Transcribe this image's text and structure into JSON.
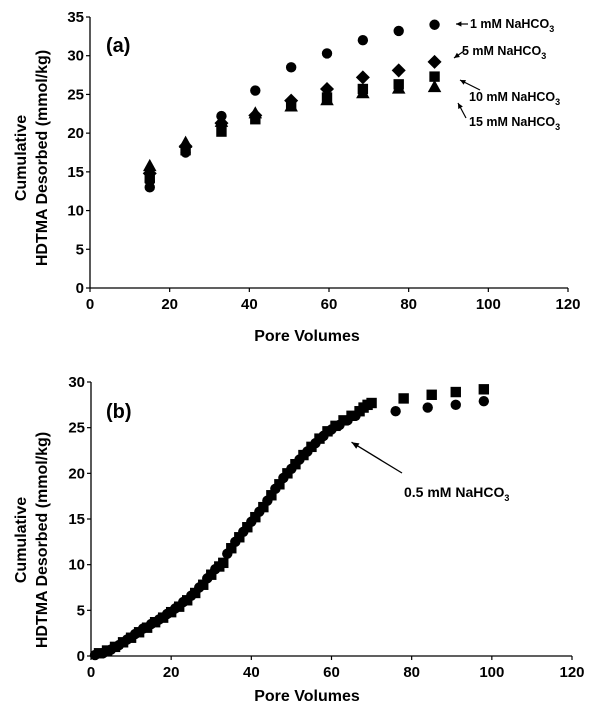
{
  "chart_data": [
    {
      "type": "scatter",
      "panel_label": "(a)",
      "xlabel": "Pore Volumes",
      "ylabel": [
        "Cumulative",
        "HDTMA Desorbed (mmol/kg)"
      ],
      "xlim": [
        0,
        120
      ],
      "ylim": [
        0,
        35
      ],
      "xticks": [
        0,
        20,
        40,
        60,
        80,
        100,
        120
      ],
      "yticks": [
        0,
        5,
        10,
        15,
        20,
        25,
        30,
        35
      ],
      "grid": false,
      "legend": "none",
      "series": [
        {
          "name": "1 mM NaHCO3",
          "label_main": "1 mM NaHCO",
          "label_sub": "3",
          "marker": "circle",
          "points": [
            [
              15,
              13
            ],
            [
              15,
              13.8
            ],
            [
              24,
              17.5
            ],
            [
              33,
              22.2
            ],
            [
              41.5,
              25.5
            ],
            [
              50.5,
              28.5
            ],
            [
              59.5,
              30.3
            ],
            [
              68.5,
              32
            ],
            [
              77.5,
              33.2
            ],
            [
              86.5,
              34
            ]
          ]
        },
        {
          "name": "5 mM NaHCO3",
          "label_main": "5 mM NaHCO",
          "label_sub": "3",
          "marker": "diamond",
          "points": [
            [
              15,
              14.8
            ],
            [
              24,
              18.3
            ],
            [
              33,
              21.3
            ],
            [
              41.5,
              22.3
            ],
            [
              50.5,
              24.2
            ],
            [
              59.5,
              25.7
            ],
            [
              68.5,
              27.2
            ],
            [
              77.5,
              28.1
            ],
            [
              86.5,
              29.2
            ]
          ]
        },
        {
          "name": "10 mM NaHCO3",
          "label_main": "10 mM NaHCO",
          "label_sub": "3",
          "marker": "square",
          "points": [
            [
              15,
              14.2
            ],
            [
              24,
              17.8
            ],
            [
              33,
              20.2
            ],
            [
              41.5,
              21.8
            ],
            [
              50.5,
              23.6
            ],
            [
              59.5,
              24.6
            ],
            [
              68.5,
              25.7
            ],
            [
              77.5,
              26.3
            ],
            [
              86.5,
              27.3
            ]
          ]
        },
        {
          "name": "15 mM NaHCO3",
          "label_main": "15 mM NaHCO",
          "label_sub": "3",
          "marker": "triangle",
          "points": [
            [
              15,
              15.8
            ],
            [
              24,
              18.8
            ],
            [
              33,
              21.5
            ],
            [
              41.5,
              22.6
            ],
            [
              50.5,
              23.5
            ],
            [
              59.5,
              24.3
            ],
            [
              68.5,
              25.2
            ],
            [
              77.5,
              25.8
            ],
            [
              86.5,
              26
            ]
          ]
        }
      ]
    },
    {
      "type": "scatter",
      "panel_label": "(b)",
      "xlabel": "Pore Volumes",
      "ylabel": [
        "Cumulative",
        "HDTMA Desorbed (mmol/kg)"
      ],
      "xlim": [
        0,
        120
      ],
      "ylim": [
        0,
        30
      ],
      "xticks": [
        0,
        20,
        40,
        60,
        80,
        100,
        120
      ],
      "yticks": [
        0,
        5,
        10,
        15,
        20,
        25,
        30
      ],
      "grid": false,
      "legend": "none",
      "annotation": {
        "main": "0.5 mM NaHCO",
        "sub": "3",
        "points_to": [
          63,
          24.5
        ]
      },
      "series": [
        {
          "name": "circles",
          "marker": "circle",
          "points": [
            [
              1,
              0.1
            ],
            [
              3,
              0.3
            ],
            [
              5,
              0.7
            ],
            [
              7,
              1.2
            ],
            [
              9,
              1.8
            ],
            [
              11,
              2.4
            ],
            [
              13,
              3
            ],
            [
              15,
              3.5
            ],
            [
              17,
              4
            ],
            [
              19,
              4.6
            ],
            [
              21,
              5.2
            ],
            [
              23,
              5.9
            ],
            [
              25,
              6.6
            ],
            [
              27,
              7.5
            ],
            [
              29,
              8.5
            ],
            [
              31,
              9.5
            ],
            [
              34,
              11.2
            ],
            [
              36,
              12.5
            ],
            [
              38,
              13.6
            ],
            [
              40,
              14.7
            ],
            [
              42,
              15.8
            ],
            [
              44,
              17
            ],
            [
              46,
              18.3
            ],
            [
              48,
              19.5
            ],
            [
              50,
              20.5
            ],
            [
              52,
              21.5
            ],
            [
              54,
              22.4
            ],
            [
              56,
              23.3
            ],
            [
              58,
              24.1
            ],
            [
              60,
              24.8
            ],
            [
              62,
              25.3
            ],
            [
              64,
              25.8
            ],
            [
              66,
              26.3
            ],
            [
              76,
              26.8
            ],
            [
              84,
              27.2
            ],
            [
              91,
              27.5
            ],
            [
              98,
              27.9
            ]
          ]
        },
        {
          "name": "squares",
          "marker": "square",
          "points": [
            [
              2,
              0.3
            ],
            [
              4,
              0.6
            ],
            [
              6,
              1
            ],
            [
              8,
              1.5
            ],
            [
              10,
              2
            ],
            [
              12,
              2.6
            ],
            [
              14,
              3.1
            ],
            [
              16,
              3.7
            ],
            [
              18,
              4.2
            ],
            [
              20,
              4.8
            ],
            [
              22,
              5.4
            ],
            [
              24,
              6.1
            ],
            [
              26,
              6.9
            ],
            [
              28,
              7.8
            ],
            [
              30,
              8.9
            ],
            [
              32,
              9.8
            ],
            [
              33,
              10.2
            ],
            [
              35,
              11.8
            ],
            [
              37,
              13
            ],
            [
              39,
              14.1
            ],
            [
              41,
              15.2
            ],
            [
              43,
              16.3
            ],
            [
              45,
              17.6
            ],
            [
              47,
              18.8
            ],
            [
              49,
              20
            ],
            [
              51,
              21
            ],
            [
              53,
              22
            ],
            [
              55,
              22.9
            ],
            [
              57,
              23.8
            ],
            [
              59,
              24.6
            ],
            [
              61,
              25.2
            ],
            [
              63,
              25.8
            ],
            [
              65,
              26.3
            ],
            [
              67,
              26.8
            ],
            [
              68,
              27.2
            ],
            [
              69,
              27.5
            ],
            [
              70,
              27.7
            ],
            [
              78,
              28.2
            ],
            [
              85,
              28.6
            ],
            [
              91,
              28.9
            ],
            [
              98,
              29.2
            ]
          ]
        }
      ]
    }
  ]
}
